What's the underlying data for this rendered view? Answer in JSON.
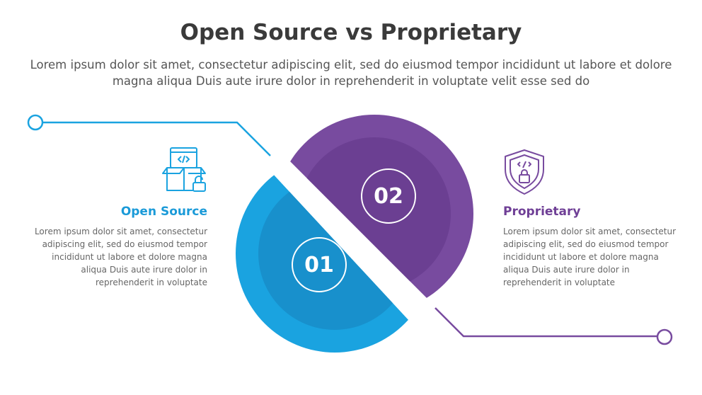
{
  "title": "Open Source vs Proprietary",
  "subtitle": "Lorem ipsum dolor sit amet, consectetur adipiscing elit, sed do eiusmod tempor incididunt ut labore et dolore magna aliqua Duis aute irure dolor in reprehenderit in voluptate velit esse sed do",
  "colors": {
    "blue": "#1aa3e0",
    "blue_inner": "#1890cc",
    "purple": "#784b9f",
    "purple_inner": "#6b3f92"
  },
  "items": [
    {
      "number": "01",
      "heading": "Open Source",
      "icon": "open-box-code-unlock-icon",
      "text": "Lorem ipsum dolor sit amet, consectetur adipiscing elit, sed do eiusmod tempor incididunt ut labore et dolore magna aliqua Duis aute irure dolor in reprehenderit in voluptate"
    },
    {
      "number": "02",
      "heading": "Proprietary",
      "icon": "shield-code-lock-icon",
      "text": "Lorem ipsum dolor sit amet, consectetur adipiscing elit, sed do eiusmod tempor incididunt ut labore et dolore magna aliqua Duis aute irure dolor in reprehenderit in voluptate"
    }
  ]
}
